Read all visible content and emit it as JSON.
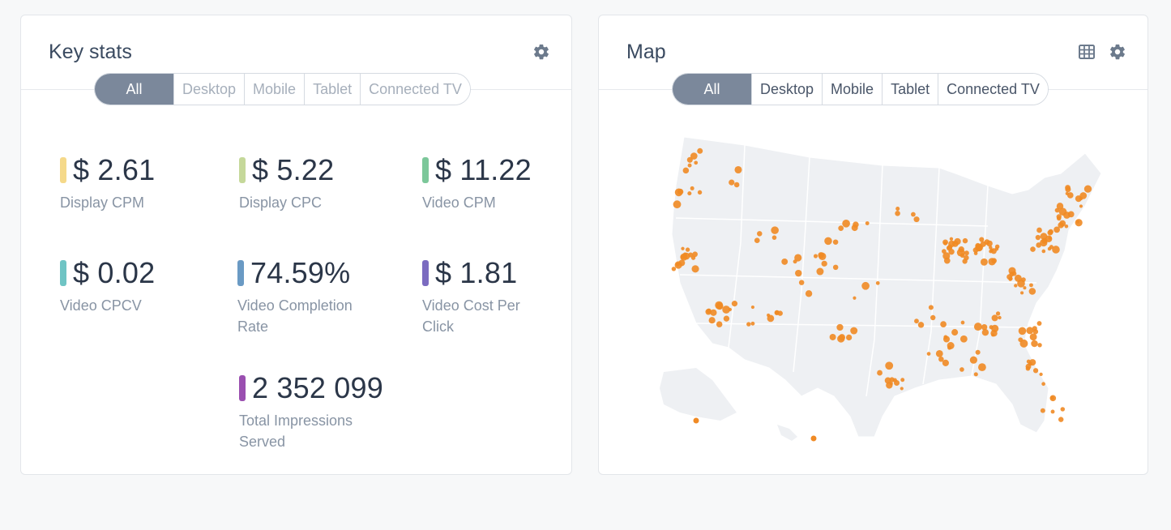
{
  "key_stats": {
    "title": "Key stats",
    "tabs": [
      "All",
      "Desktop",
      "Mobile",
      "Tablet",
      "Connected TV"
    ],
    "stats": [
      {
        "value": "$ 2.61",
        "label": "Display CPM",
        "color": "#f5d98a"
      },
      {
        "value": "$ 5.22",
        "label": "Display CPC",
        "color": "#c5d89a"
      },
      {
        "value": "$ 11.22",
        "label": "Video CPM",
        "color": "#7cc79a"
      },
      {
        "value": "$ 0.02",
        "label": "Video CPCV",
        "color": "#6fc4c4"
      },
      {
        "value": "74.59%",
        "label": "Video Completion Rate",
        "color": "#6a9ac4"
      },
      {
        "value": "$ 1.81",
        "label": "Video Cost Per Click",
        "color": "#7b6bc0"
      },
      {
        "value": "2 352 099",
        "label": "Total Impressions Served",
        "color": "#9a4fb0"
      }
    ]
  },
  "map": {
    "title": "Map",
    "tabs": [
      "All",
      "Desktop",
      "Mobile",
      "Tablet",
      "Connected TV"
    ],
    "dot_color": "#f08a24",
    "land_color": "#eef0f3"
  },
  "colors": {
    "active_tab": "#7b889b",
    "gear": "#6c7a8c"
  }
}
